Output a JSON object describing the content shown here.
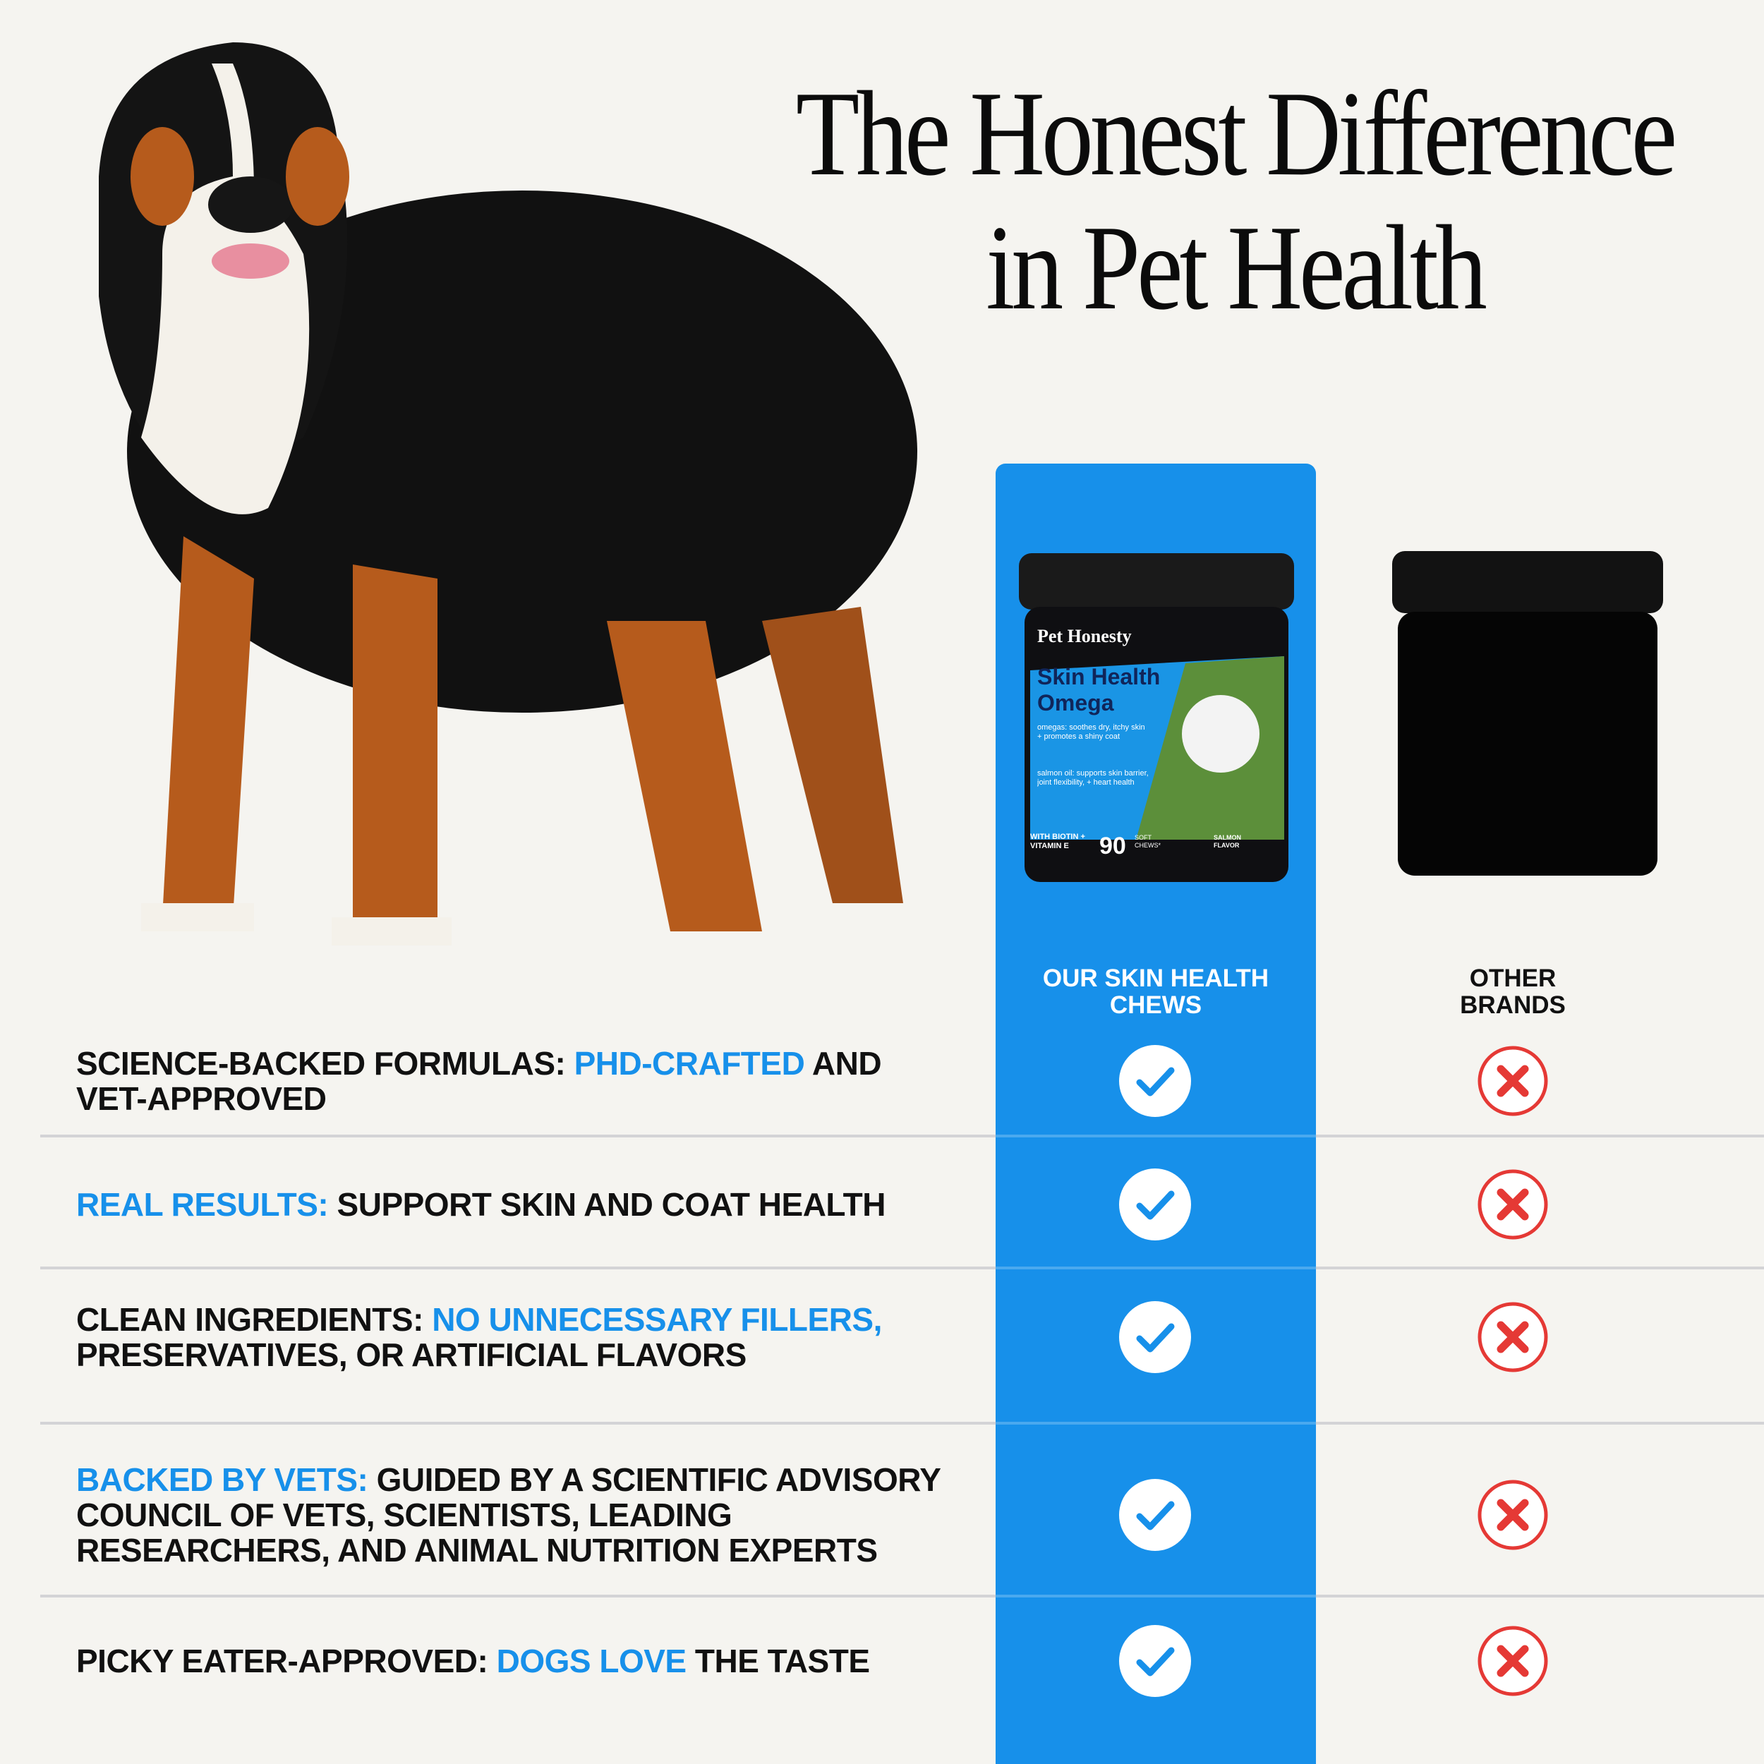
{
  "header": {
    "title_lines": [
      "The Honest Difference",
      "in Pet Health"
    ]
  },
  "columns": {
    "ours": "OUR SKIN HEALTH CHEWS",
    "others": "OTHER BRANDS"
  },
  "product": {
    "brand": "Pet Honesty",
    "name_lines": [
      "Skin Health",
      "Omega"
    ],
    "claims": [
      "omegas: soothes dry, itchy skin + promotes a shiny coat",
      "salmon oil: supports skin barrier, joint flexibility, + heart health"
    ],
    "extras": "WITH BIOTIN + VITAMIN E",
    "count": "90",
    "count_unit": "SOFT CHEWS*",
    "flavor": "SALMON FLAVOR"
  },
  "table": {
    "rows": [
      {
        "segments": [
          {
            "text": "SCIENCE-BACKED FORMULAS:",
            "highlight": false
          },
          {
            "text": "PHD-CRAFTED",
            "highlight": true
          },
          {
            "text": "AND VET-APPROVED",
            "highlight": false
          }
        ],
        "ours": true,
        "others": false
      },
      {
        "segments": [
          {
            "text": "REAL RESULTS:",
            "highlight": true
          },
          {
            "text": "SUPPORT SKIN AND COAT HEALTH",
            "highlight": false
          }
        ],
        "ours": true,
        "others": false
      },
      {
        "segments": [
          {
            "text": "CLEAN INGREDIENTS:",
            "highlight": false
          },
          {
            "text": "NO UNNECESSARY FILLERS,",
            "highlight": true
          },
          {
            "text": "PRESERVATIVES, OR ARTIFICIAL FLAVORS",
            "highlight": false
          }
        ],
        "ours": true,
        "others": false
      },
      {
        "segments": [
          {
            "text": "BACKED BY VETS:",
            "highlight": true
          },
          {
            "text": "GUIDED BY A SCIENTIFIC ADVISORY COUNCIL OF VETS, SCIENTISTS, LEADING RESEARCHERS, AND ANIMAL NUTRITION EXPERTS",
            "highlight": false
          }
        ],
        "ours": true,
        "others": false
      },
      {
        "segments": [
          {
            "text": "PICKY EATER-APPROVED:",
            "highlight": false
          },
          {
            "text": "DOGS LOVE",
            "highlight": true
          },
          {
            "text": "THE TASTE",
            "highlight": false
          }
        ],
        "ours": true,
        "others": false
      }
    ]
  }
}
